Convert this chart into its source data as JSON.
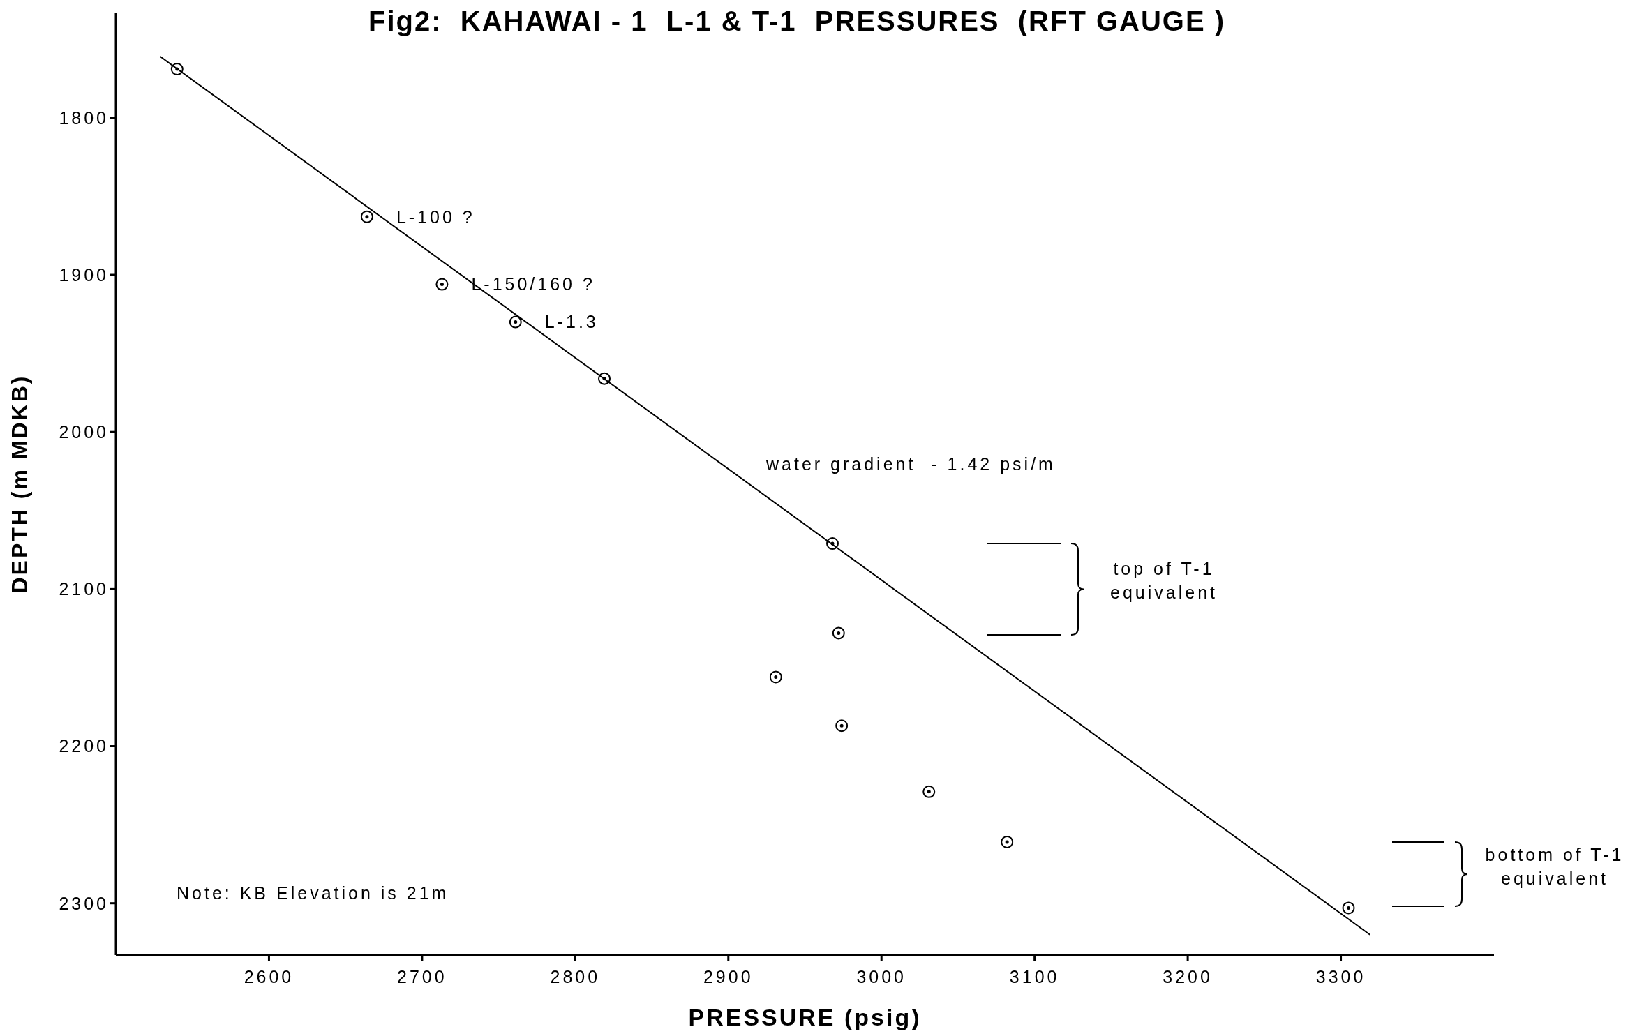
{
  "chart_data": {
    "type": "scatter",
    "title": "Fig2:  KAHAWAI - 1  L-1 & T-1  PRESSURES  (RFT GAUGE )",
    "xlabel": "PRESSURE (psig)",
    "ylabel": "DEPTH (m MDKB)",
    "xlim": [
      2500,
      3400
    ],
    "xticks": [
      2600,
      2700,
      2800,
      2900,
      3000,
      3100,
      3200,
      3300
    ],
    "ylim": [
      2333,
      1733
    ],
    "yticks": [
      1800,
      1900,
      2000,
      2100,
      2200,
      2300
    ],
    "grid": false,
    "legend": false,
    "series": [
      {
        "marker": "circle",
        "color": "#000000",
        "x": [
          2540,
          2664,
          2713,
          2761,
          2819,
          2968,
          2972,
          2931,
          2974,
          3031,
          3082,
          3305
        ],
        "values": [
          1769,
          1863,
          1906,
          1930,
          1966,
          2071,
          2128,
          2156,
          2187,
          2229,
          2261,
          2303
        ]
      },
      {
        "type": "line",
        "marker": "none",
        "color": "#000000",
        "x": [
          2529,
          3319
        ],
        "values": [
          1761,
          2320
        ]
      }
    ],
    "annotations": [
      {
        "text": "L-100 ?",
        "x": 2664,
        "y": 1863
      },
      {
        "text": "L-150/160 ?",
        "x": 2713,
        "y": 1906
      },
      {
        "text": "L-1.3",
        "x": 2761,
        "y": 1930
      },
      "water gradient  - 1.42 psi/m",
      "Note: KB Elevation is 21m",
      "top of T-1 equivalent",
      "bottom of T-1 equivalent"
    ]
  }
}
